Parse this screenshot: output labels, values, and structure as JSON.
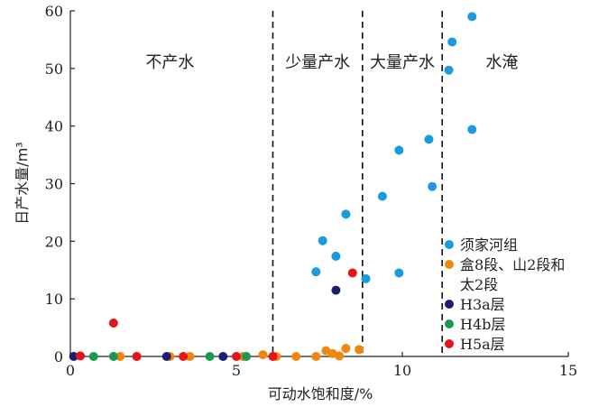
{
  "chart_data": {
    "type": "scatter",
    "title": "",
    "xlabel": "可动水饱和度/%",
    "ylabel": "日产水量/m³",
    "xlim": [
      0,
      15
    ],
    "ylim": [
      0,
      60
    ],
    "x_ticks": [
      "0",
      "5",
      "10",
      "15"
    ],
    "y_ticks": [
      "0",
      "10",
      "20",
      "30",
      "40",
      "50",
      "60"
    ],
    "grid": false,
    "boundaries": [
      6.1,
      8.8,
      11.2
    ],
    "zones": [
      {
        "label": "不产水",
        "x": 3.0
      },
      {
        "label": "少量产水",
        "x": 7.45
      },
      {
        "label": "大量产水",
        "x": 10.0
      },
      {
        "label": "水淹",
        "x": 13.0
      }
    ],
    "legend_position": "right",
    "series": [
      {
        "name": "须家河组",
        "color": "#1a9be0",
        "points": [
          [
            12.1,
            59.0
          ],
          [
            11.5,
            54.6
          ],
          [
            11.4,
            49.7
          ],
          [
            12.1,
            39.4
          ],
          [
            10.8,
            37.7
          ],
          [
            9.9,
            35.8
          ],
          [
            10.9,
            29.5
          ],
          [
            9.4,
            27.8
          ],
          [
            8.3,
            24.7
          ],
          [
            7.6,
            20.1
          ],
          [
            8.0,
            17.4
          ],
          [
            7.4,
            14.7
          ],
          [
            9.9,
            14.5
          ],
          [
            8.9,
            13.5
          ]
        ]
      },
      {
        "name": "盒8段、山2段和太2段",
        "color": "#f0860e",
        "points": [
          [
            3.0,
            0.0
          ],
          [
            3.6,
            0.0
          ],
          [
            5.2,
            0.0
          ],
          [
            5.8,
            0.3
          ],
          [
            6.2,
            0.0
          ],
          [
            6.8,
            0.0
          ],
          [
            7.4,
            0.0
          ],
          [
            7.7,
            1.0
          ],
          [
            7.9,
            0.5
          ],
          [
            8.1,
            0.1
          ],
          [
            8.3,
            1.4
          ],
          [
            8.7,
            1.2
          ],
          [
            1.5,
            0.0
          ],
          [
            2.0,
            0.0
          ]
        ]
      },
      {
        "name": "H3a层",
        "color": "#1b1e73",
        "points": [
          [
            8.0,
            11.5
          ],
          [
            0.1,
            0.0
          ],
          [
            2.9,
            0.0
          ],
          [
            4.6,
            0.0
          ]
        ]
      },
      {
        "name": "H4b层",
        "color": "#1a9a50",
        "points": [
          [
            0.7,
            0.0
          ],
          [
            1.3,
            0.0
          ],
          [
            4.2,
            0.0
          ],
          [
            5.3,
            0.0
          ]
        ]
      },
      {
        "name": "H5a层",
        "color": "#e5141a",
        "points": [
          [
            1.3,
            5.8
          ],
          [
            8.5,
            14.5
          ],
          [
            0.3,
            0.1
          ],
          [
            2.0,
            0.0
          ],
          [
            3.4,
            0.0
          ],
          [
            5.0,
            0.0
          ],
          [
            6.1,
            0.0
          ]
        ]
      }
    ]
  }
}
